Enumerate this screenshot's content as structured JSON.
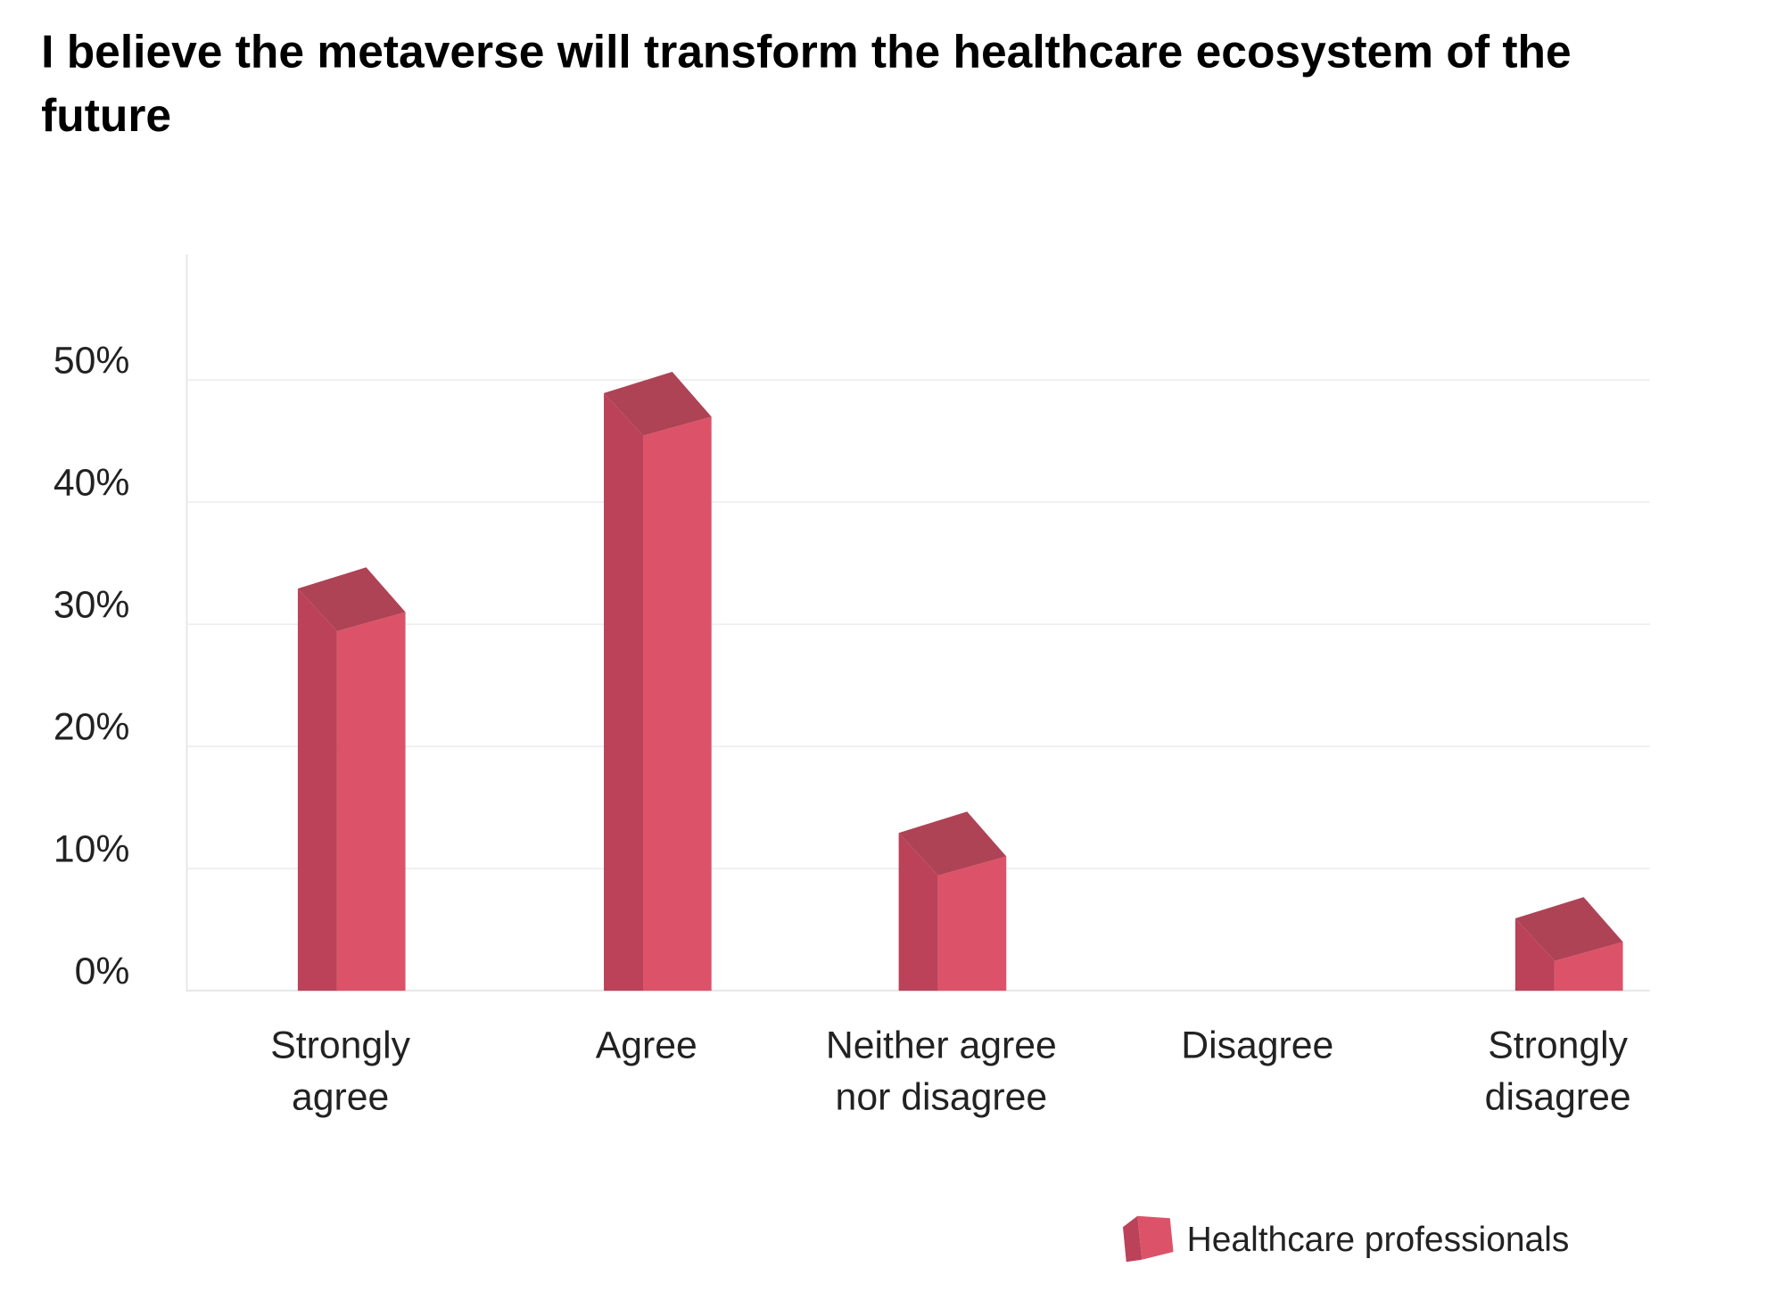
{
  "chart_data": {
    "type": "bar3d",
    "title": "I believe the metaverse will transform the healthcare ecosystem of the future",
    "categories": [
      "Strongly\nagree",
      "Agree",
      "Neither agree\nnor disagree",
      "Disagree",
      "Strongly\ndisagree"
    ],
    "series": [
      {
        "name": "Healthcare professionals",
        "color": "#dc5369",
        "values": [
          32,
          48,
          12,
          0,
          5
        ]
      }
    ],
    "ylim": [
      0,
      60
    ],
    "yticks": [
      {
        "value": 0,
        "label": "0%"
      },
      {
        "value": 10,
        "label": "10%"
      },
      {
        "value": 20,
        "label": "20%"
      },
      {
        "value": 30,
        "label": "30%"
      },
      {
        "value": 40,
        "label": "40%"
      },
      {
        "value": 50,
        "label": "50%"
      }
    ],
    "grid": true
  }
}
